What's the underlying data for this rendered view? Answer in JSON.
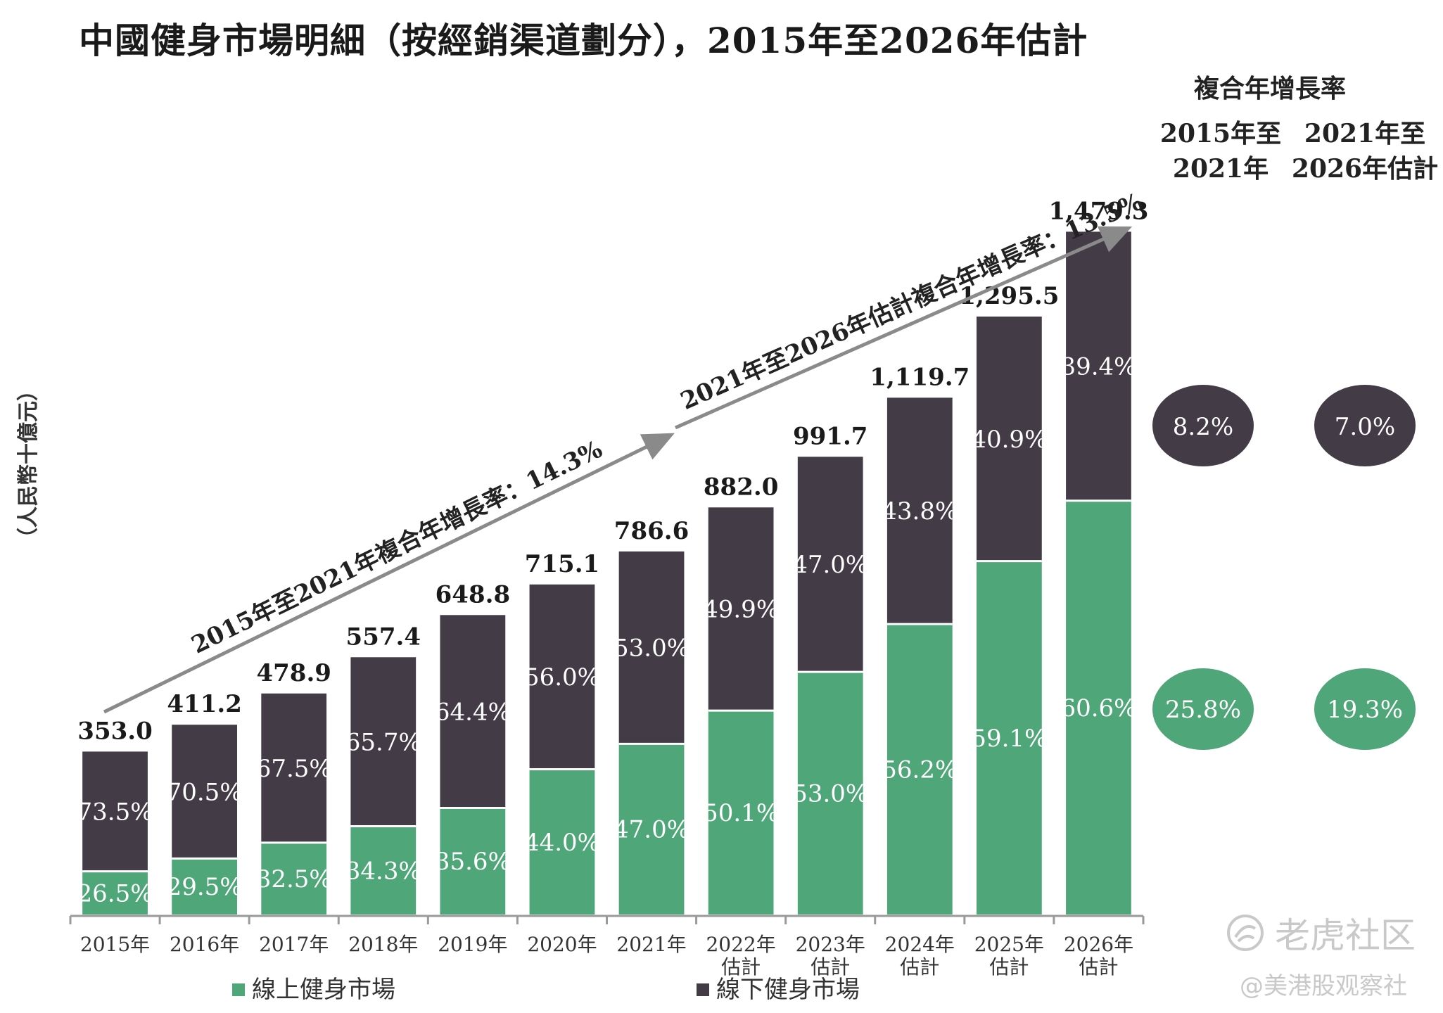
{
  "title": "中國健身市場明細（按經銷渠道劃分），2015年至2026年估計",
  "colors": {
    "online": "#4fa678",
    "offline": "#433c47",
    "arrow": "#8a8a8a"
  },
  "chart_data": {
    "type": "bar",
    "stacked": true,
    "ylabel": "（人民幣十億元）",
    "categories": [
      [
        "2015年"
      ],
      [
        "2016年"
      ],
      [
        "2017年"
      ],
      [
        "2018年"
      ],
      [
        "2019年"
      ],
      [
        "2020年"
      ],
      [
        "2021年"
      ],
      [
        "2022年",
        "估計"
      ],
      [
        "2023年",
        "估計"
      ],
      [
        "2024年",
        "估計"
      ],
      [
        "2025年",
        "估計"
      ],
      [
        "2026年",
        "估計"
      ]
    ],
    "totals": [
      353.0,
      411.2,
      478.9,
      557.4,
      648.8,
      715.1,
      786.6,
      882.0,
      991.7,
      1119.7,
      1295.5,
      1479.3
    ],
    "total_labels": [
      "353.0",
      "411.2",
      "478.9",
      "557.4",
      "648.8",
      "715.1",
      "786.6",
      "882.0",
      "991.7",
      "1,119.7",
      "1,295.5",
      "1,479.3"
    ],
    "series": [
      {
        "name": "線上健身市場",
        "color": "#4fa678",
        "share_pct": [
          26.5,
          29.5,
          32.5,
          34.3,
          35.6,
          44.0,
          47.0,
          50.1,
          53.0,
          56.2,
          59.1,
          60.6
        ],
        "labels": [
          "26.5%",
          "29.5%",
          "32.5%",
          "34.3%",
          "35.6%",
          "44.0%",
          "47.0%",
          "50.1%",
          "53.0%",
          "56.2%",
          "59.1%",
          "60.6%"
        ]
      },
      {
        "name": "線下健身市場",
        "color": "#433c47",
        "share_pct": [
          73.5,
          70.5,
          67.5,
          65.7,
          64.4,
          56.0,
          53.0,
          49.9,
          47.0,
          43.8,
          40.9,
          39.4
        ],
        "labels": [
          "73.5%",
          "70.5%",
          "67.5%",
          "65.7%",
          "64.4%",
          "56.0%",
          "53.0%",
          "49.9%",
          "47.0%",
          "43.8%",
          "40.9%",
          "39.4%"
        ]
      }
    ],
    "ylim": [
      0,
      1550
    ],
    "grid": false,
    "legend_placement": "bottom",
    "annotations": [
      {
        "text": "2015年至2021年複合年增長率：14.3%",
        "from_category": 0,
        "to_category": 6
      },
      {
        "text": "2021年至2026年估計複合年增長率：13.5%",
        "from_category": 6,
        "to_category": 11
      }
    ],
    "cagr_table": {
      "header": "複合年增長率",
      "columns": [
        [
          "2015年至",
          "2021年"
        ],
        [
          "2021年至",
          "2026年估計"
        ]
      ],
      "offline": [
        "8.2%",
        "7.0%"
      ],
      "online": [
        "25.8%",
        "19.3%"
      ]
    }
  },
  "watermark": {
    "brand": "老虎社区",
    "handle": "@美港股观察社"
  }
}
